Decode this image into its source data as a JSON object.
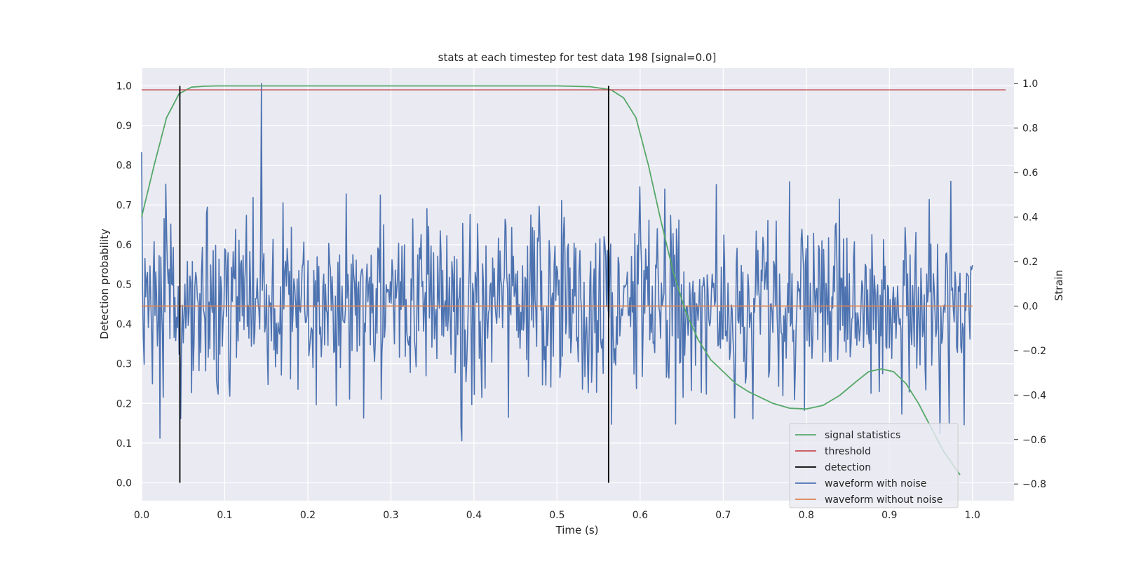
{
  "chart_data": {
    "type": "line",
    "title": "stats at each timestep for test data 198 [signal=0.0]",
    "xlabel": "Time (s)",
    "ylabel_left": "Detection probability",
    "ylabel_right": "Strain",
    "xlim": [
      0.0,
      1.05
    ],
    "ylim_left": [
      -0.045,
      1.045
    ],
    "ylim_right": [
      -0.875,
      1.07
    ],
    "xticks": [
      "0.0",
      "0.1",
      "0.2",
      "0.3",
      "0.4",
      "0.5",
      "0.6",
      "0.7",
      "0.8",
      "0.9",
      "1.0"
    ],
    "yticks_left": [
      "0.0",
      "0.1",
      "0.2",
      "0.3",
      "0.4",
      "0.5",
      "0.6",
      "0.7",
      "0.8",
      "0.9",
      "1.0"
    ],
    "yticks_right": [
      "−0.8",
      "−0.6",
      "−0.4",
      "−0.2",
      "0.0",
      "0.2",
      "0.4",
      "0.6",
      "0.8",
      "1.0"
    ],
    "grid": true,
    "legend_position": "lower-right",
    "colors": {
      "background": "#eaeaf2",
      "grid": "#ffffff",
      "signal_statistics": "#55a868",
      "threshold": "#c44e52",
      "detection": "#000000",
      "waveform_with_noise": "#4c72b0",
      "waveform_without_noise": "#dd8452"
    },
    "series": [
      {
        "name": "signal statistics",
        "axis": "left",
        "x": [
          0.0,
          0.015,
          0.03,
          0.045,
          0.06,
          0.075,
          0.09,
          0.2,
          0.35,
          0.5,
          0.54,
          0.565,
          0.58,
          0.595,
          0.61,
          0.625,
          0.64,
          0.655,
          0.67,
          0.685,
          0.7,
          0.715,
          0.73,
          0.745,
          0.76,
          0.78,
          0.8,
          0.82,
          0.84,
          0.86,
          0.875,
          0.89,
          0.905,
          0.92,
          0.935,
          0.95,
          0.965,
          0.985
        ],
        "y": [
          0.67,
          0.8,
          0.92,
          0.98,
          0.997,
          0.999,
          1.0,
          1.0,
          1.0,
          1.0,
          0.998,
          0.99,
          0.97,
          0.92,
          0.8,
          0.66,
          0.53,
          0.43,
          0.36,
          0.31,
          0.28,
          0.25,
          0.23,
          0.215,
          0.2,
          0.188,
          0.186,
          0.195,
          0.22,
          0.255,
          0.28,
          0.287,
          0.28,
          0.25,
          0.2,
          0.14,
          0.08,
          0.02
        ]
      },
      {
        "name": "threshold",
        "axis": "left",
        "x": [
          0.0,
          1.04
        ],
        "y": [
          0.99,
          0.99
        ]
      },
      {
        "name": "detection",
        "axis": "left",
        "segments": [
          {
            "x": 0.046,
            "y": [
              0.0,
              1.0
            ]
          },
          {
            "x": 0.562,
            "y": [
              0.0,
              1.0
            ]
          }
        ]
      },
      {
        "name": "waveform with noise",
        "axis": "right",
        "x_start": 0.0,
        "x_end": 1.0,
        "count": 1000,
        "y_min": -0.8,
        "y_max": 1.0,
        "y_spread": 0.2
      },
      {
        "name": "waveform without noise",
        "axis": "right",
        "x": [
          0.0,
          1.0
        ],
        "y": [
          0.0,
          0.0
        ]
      }
    ]
  }
}
